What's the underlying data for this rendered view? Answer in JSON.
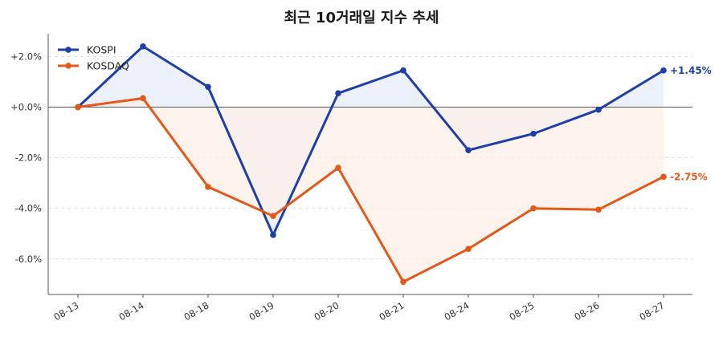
{
  "chart_data": {
    "type": "line",
    "title": "최근 10거래일 지수 추세",
    "xlabel": "",
    "ylabel": "",
    "categories": [
      "08-13",
      "08-14",
      "08-18",
      "08-19",
      "08-20",
      "08-21",
      "08-24",
      "08-25",
      "08-26",
      "08-27"
    ],
    "ylim": [
      -7.4,
      2.9
    ],
    "yticks": [
      2.0,
      0.0,
      -2.0,
      -4.0,
      -6.0
    ],
    "ytick_labels": [
      "+2.0%",
      "+0.0%",
      "-2.0%",
      "-4.0%",
      "-6.0%"
    ],
    "grid": true,
    "legend_position": "top-left",
    "series": [
      {
        "name": "KOSPI",
        "color": "#1f3fa6",
        "fill": "#e6ecf7",
        "values": [
          0.0,
          2.4,
          0.8,
          -5.05,
          0.55,
          1.45,
          -1.7,
          -1.05,
          -0.1,
          1.45
        ],
        "end_label": "+1.45%"
      },
      {
        "name": "KOSDAQ",
        "color": "#e4581a",
        "fill": "#fcefe7",
        "values": [
          0.0,
          0.35,
          -3.15,
          -4.3,
          -2.4,
          -6.9,
          -5.6,
          -4.0,
          -4.05,
          -2.75
        ],
        "end_label": "-2.75%"
      }
    ]
  }
}
